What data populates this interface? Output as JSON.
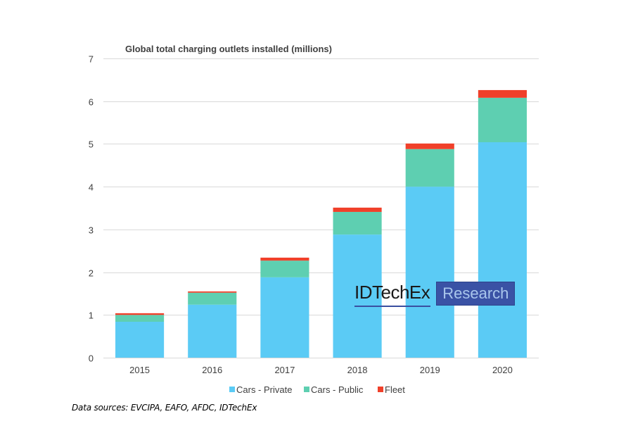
{
  "chart_data": {
    "type": "bar",
    "stacked": true,
    "title": "Global total charging outlets installed (millions)",
    "xlabel": "",
    "ylabel": "",
    "categories": [
      "2015",
      "2016",
      "2017",
      "2018",
      "2019",
      "2020"
    ],
    "series": [
      {
        "name": "Cars - Private",
        "color": "#5BCBF5",
        "values": [
          0.84,
          1.24,
          1.88,
          2.88,
          4.0,
          5.04
        ]
      },
      {
        "name": "Cars - Public",
        "color": "#5ECFB1",
        "values": [
          0.16,
          0.28,
          0.39,
          0.53,
          0.88,
          1.04
        ]
      },
      {
        "name": "Fleet",
        "color": "#F0402A",
        "values": [
          0.04,
          0.03,
          0.07,
          0.1,
          0.13,
          0.18
        ]
      }
    ],
    "ylim": [
      0,
      7
    ],
    "yticks": [
      0,
      1,
      2,
      3,
      4,
      5,
      6,
      7
    ],
    "grid": true,
    "legend": "bottom"
  },
  "logo": {
    "main": "IDTechEx",
    "box": "Research"
  },
  "source": "Data sources: EVCIPA, EAFO, AFDC, IDTechEx"
}
